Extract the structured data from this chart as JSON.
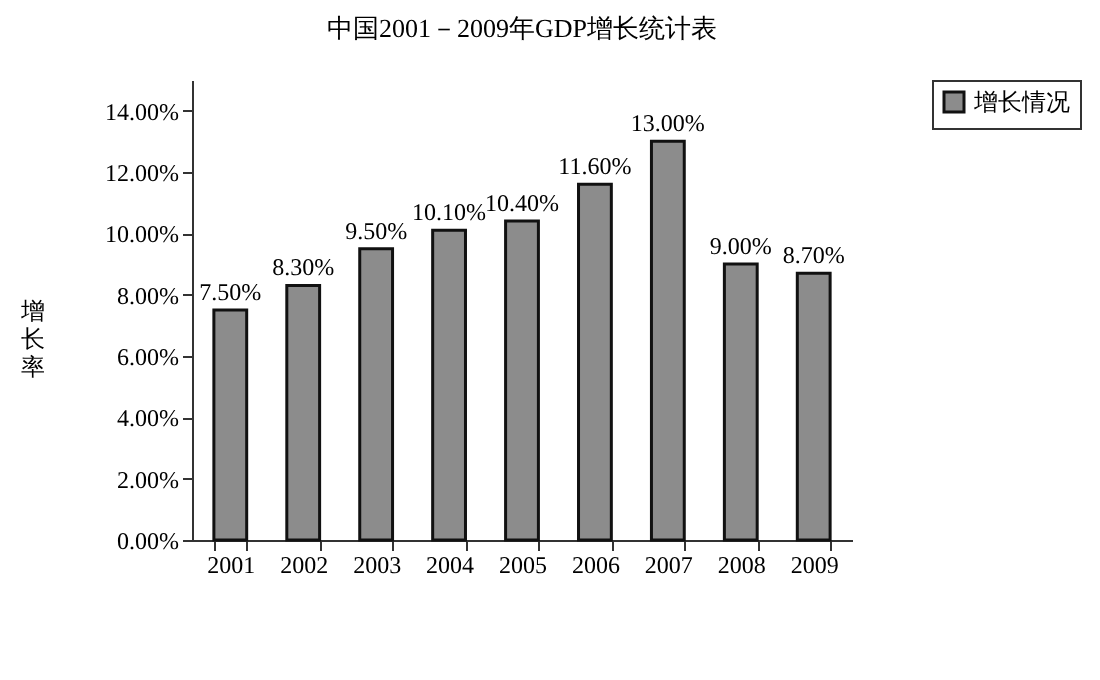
{
  "chart_data": {
    "type": "bar",
    "title": "中国2001－2009年GDP增长统计表",
    "ylabel": "增长率",
    "categories": [
      "2001",
      "2002",
      "2003",
      "2004",
      "2005",
      "2006",
      "2007",
      "2008",
      "2009"
    ],
    "series": [
      {
        "name": "增长情况",
        "color": "#8c8c8c",
        "values": [
          7.5,
          8.3,
          9.5,
          10.1,
          10.4,
          11.6,
          13.0,
          9.0,
          8.7
        ],
        "value_labels": [
          "7.50%",
          "8.30%",
          "9.50%",
          "10.10%",
          "10.40%",
          "11.60%",
          "13.00%",
          "9.00%",
          "8.70%"
        ]
      }
    ],
    "ylim": [
      0,
      15
    ],
    "yticks": [
      {
        "value": 0,
        "label": "0.00%"
      },
      {
        "value": 2,
        "label": "2.00%"
      },
      {
        "value": 4,
        "label": "4.00%"
      },
      {
        "value": 6,
        "label": "6.00%"
      },
      {
        "value": 8,
        "label": "8.00%"
      },
      {
        "value": 10,
        "label": "10.00%"
      },
      {
        "value": 12,
        "label": "12.00%"
      },
      {
        "value": 14,
        "label": "14.00%"
      }
    ],
    "grid": false,
    "legend": "right"
  }
}
